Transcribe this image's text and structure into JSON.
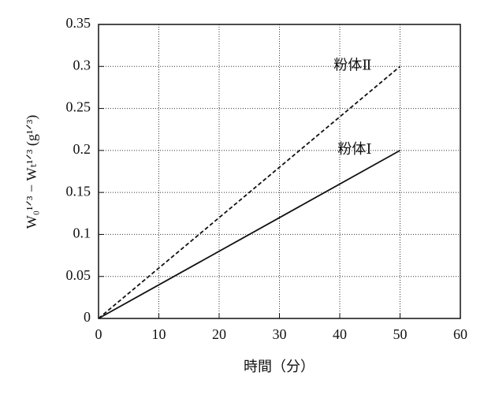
{
  "chart_data": {
    "type": "line",
    "x_label": "時間（分）",
    "y_label": "W₀¹ᐟ³ − Wₜ¹ᐟ³ (g¹ᐟ³)",
    "x": [
      0,
      50
    ],
    "series": [
      {
        "name": "粉体Ⅰ",
        "color": "#111111",
        "dash": false,
        "values": [
          0,
          0.2
        ]
      },
      {
        "name": "粉体Ⅱ",
        "color": "#111111",
        "dash": true,
        "values": [
          0,
          0.3
        ]
      }
    ],
    "xlim": [
      0,
      60
    ],
    "xticks": [
      0,
      10,
      20,
      30,
      40,
      50,
      60
    ],
    "ylim": [
      0,
      0.35
    ],
    "yticks": [
      0,
      0.05,
      0.1,
      0.15,
      0.2,
      0.25,
      0.3,
      0.35
    ],
    "grid": true
  }
}
